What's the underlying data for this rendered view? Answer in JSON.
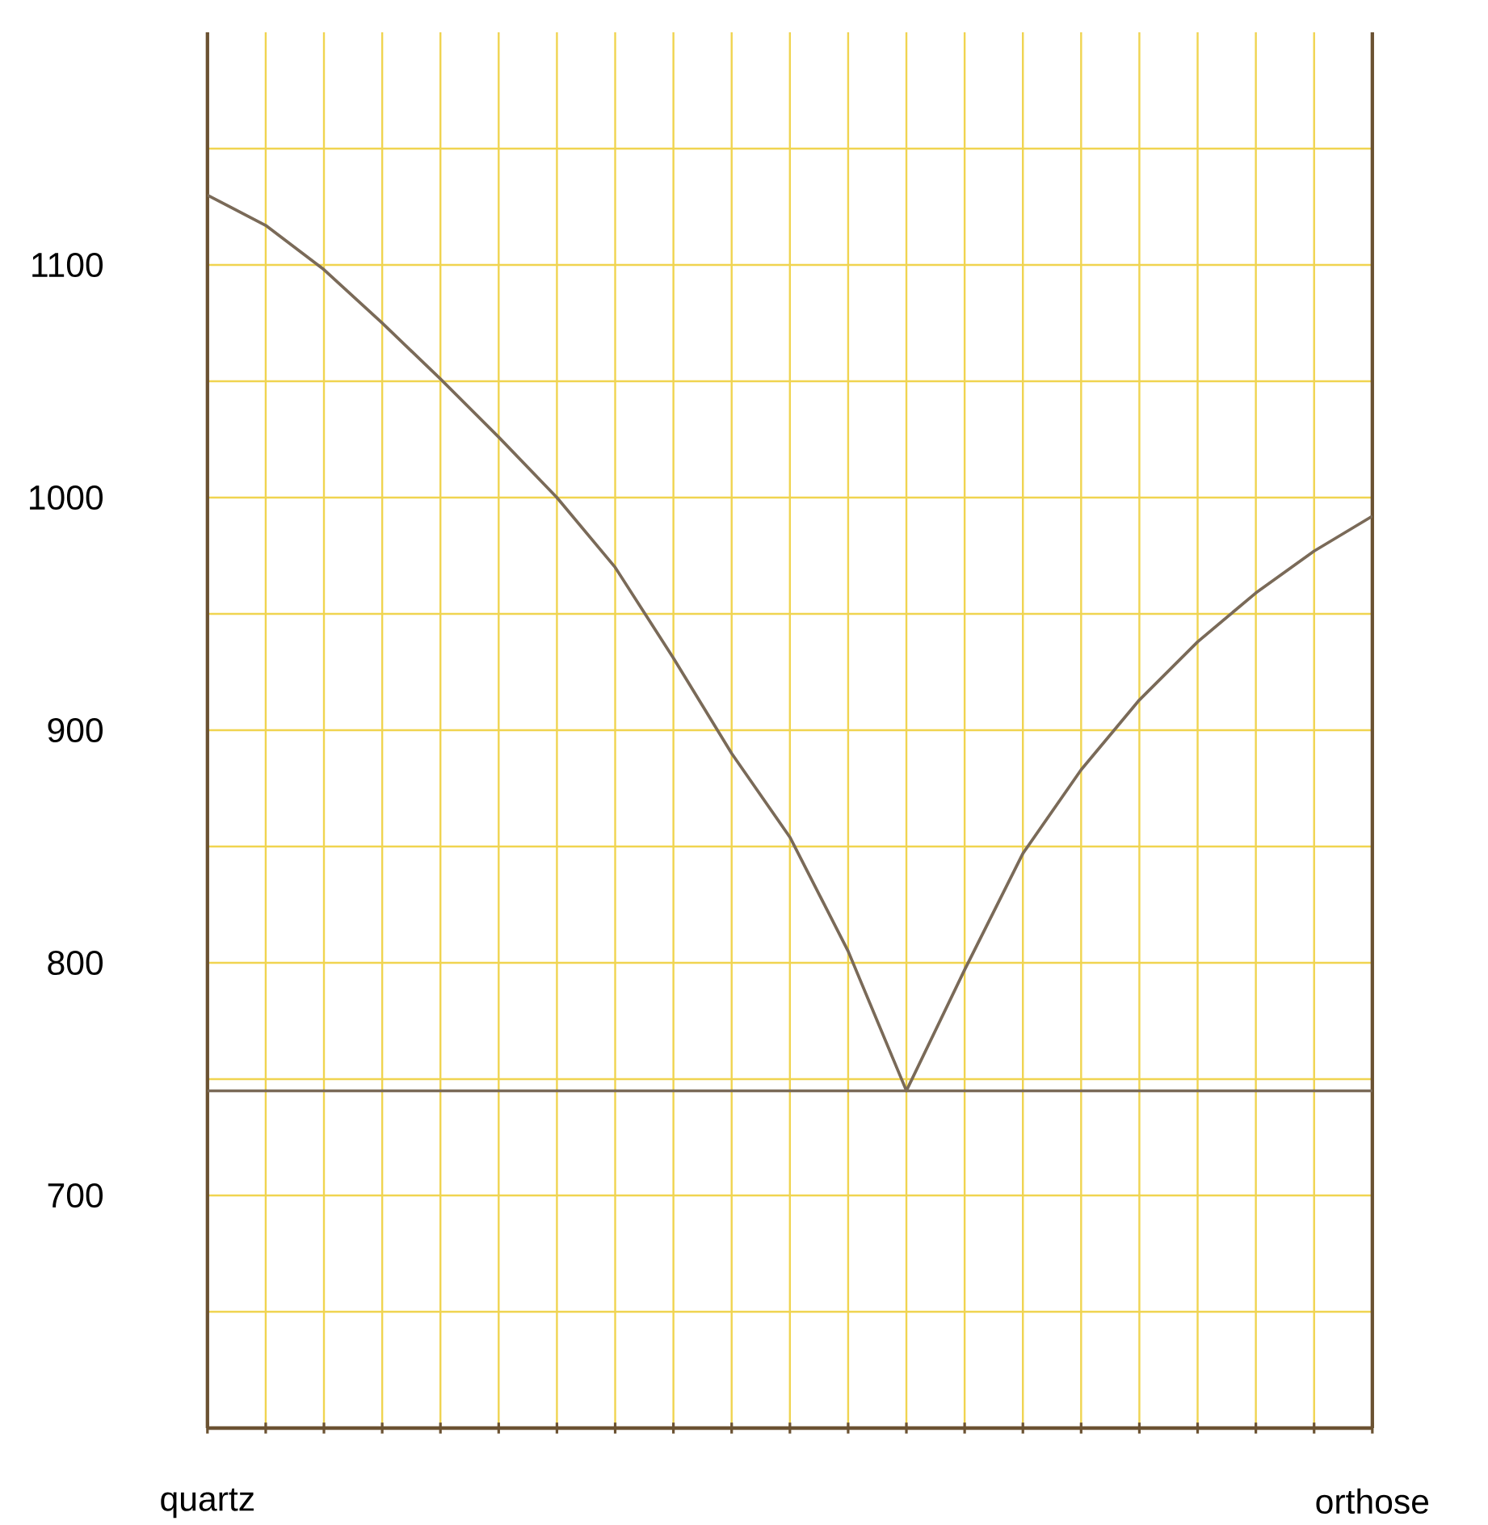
{
  "chart_data": {
    "type": "line",
    "categories": [
      "quartz",
      null,
      null,
      null,
      null,
      null,
      null,
      null,
      null,
      null,
      null,
      null,
      null,
      null,
      null,
      null,
      null,
      null,
      null,
      null,
      "orthose"
    ],
    "values": [
      1130,
      1117,
      1098,
      1075,
      1051,
      1026,
      1000,
      970,
      931,
      890,
      854,
      805,
      745,
      797,
      847,
      883,
      913,
      938,
      959,
      977,
      992
    ],
    "color": "#7a6a58",
    "line_style": "solid",
    "marker": "none",
    "grid": true,
    "ylim": [
      600,
      1200
    ],
    "yticks": [
      {
        "value": 600,
        "label": null
      },
      {
        "value": 650,
        "label": null
      },
      700,
      {
        "value": 750,
        "label": null
      },
      800,
      {
        "value": 850,
        "label": null
      },
      900,
      {
        "value": 950,
        "label": null
      },
      1000,
      {
        "value": 1050,
        "label": null
      },
      1100,
      {
        "value": 1150,
        "label": null
      }
    ],
    "ref_lines": [
      {
        "axis": "y",
        "value": 745,
        "color": "#7a6a58"
      }
    ]
  }
}
